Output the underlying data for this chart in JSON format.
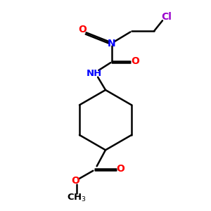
{
  "bg_color": "#ffffff",
  "bond_color": "#000000",
  "N_color": "#0000ff",
  "O_color": "#ff0000",
  "Cl_color": "#9900cc",
  "line_width": 1.8,
  "figsize": [
    3.0,
    3.0
  ],
  "dpi": 100,
  "xlim": [
    0,
    10
  ],
  "ylim": [
    0,
    10
  ]
}
